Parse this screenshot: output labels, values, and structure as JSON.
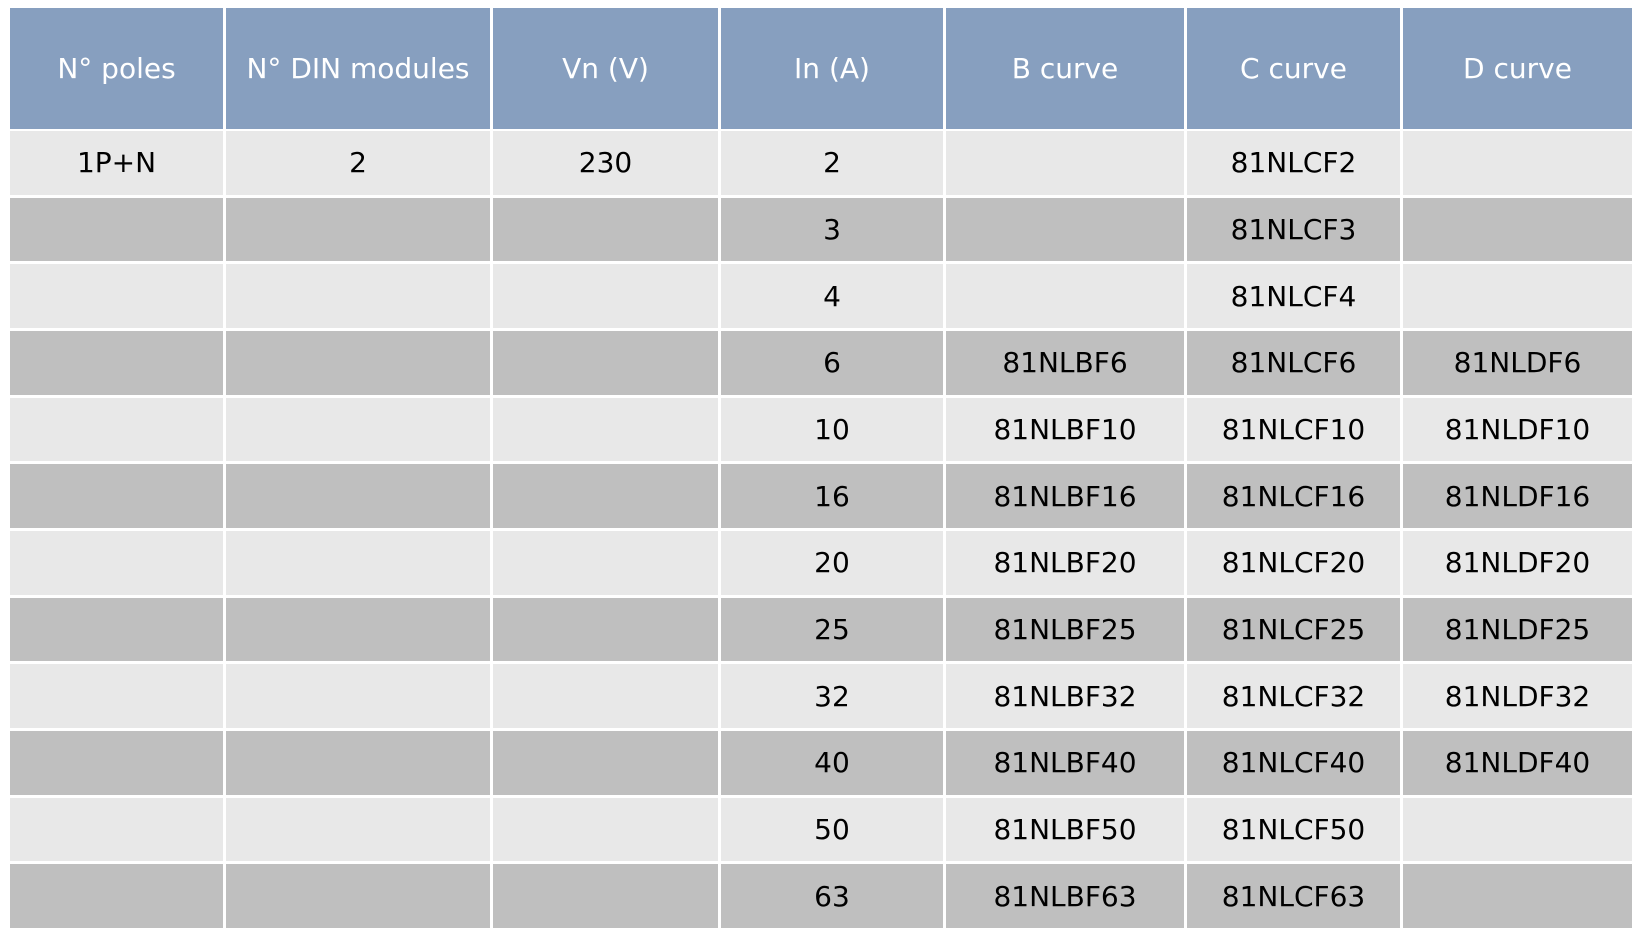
{
  "table": {
    "header": [
      "N° poles",
      "N° DIN modules",
      "Vn (V)",
      "In (A)",
      "B curve",
      "C curve",
      "D curve"
    ],
    "rows": [
      [
        "1P+N",
        2,
        230,
        2,
        null,
        "81NLCF2",
        null
      ],
      [
        null,
        null,
        null,
        3,
        null,
        "81NLCF3",
        null
      ],
      [
        null,
        null,
        null,
        4,
        null,
        "81NLCF4",
        null
      ],
      [
        null,
        null,
        null,
        6,
        "81NLBF6",
        "81NLCF6",
        "81NLDF6"
      ],
      [
        null,
        null,
        null,
        10,
        "81NLBF10",
        "81NLCF10",
        "81NLDF10"
      ],
      [
        null,
        null,
        null,
        16,
        "81NLBF16",
        "81NLCF16",
        "81NLDF16"
      ],
      [
        null,
        null,
        null,
        20,
        "81NLBF20",
        "81NLCF20",
        "81NLDF20"
      ],
      [
        null,
        null,
        null,
        25,
        "81NLBF25",
        "81NLCF25",
        "81NLDF25"
      ],
      [
        null,
        null,
        null,
        32,
        "81NLBF32",
        "81NLCF32",
        "81NLDF32"
      ],
      [
        null,
        null,
        null,
        40,
        "81NLBF40",
        "81NLCF40",
        "81NLDF40"
      ],
      [
        null,
        null,
        null,
        50,
        "81NLBF50",
        "81NLCF50",
        null
      ],
      [
        null,
        null,
        null,
        63,
        "81NLBF63",
        "81NLCF63",
        null
      ]
    ]
  }
}
